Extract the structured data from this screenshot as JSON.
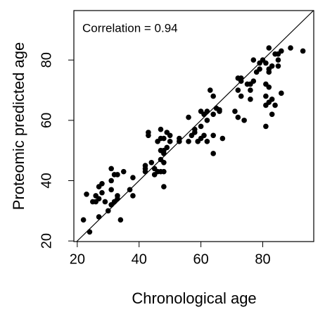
{
  "chart_data": {
    "type": "scatter",
    "x_label": "Chronological age",
    "y_label": "Proteomic predicted age",
    "annotation": "Correlation = 0.94",
    "color": "#000000",
    "xlim": [
      18.9,
      96.5
    ],
    "ylim": [
      19.8,
      96.4
    ],
    "xticks": [
      20,
      40,
      60,
      80
    ],
    "yticks": [
      20,
      40,
      60,
      80
    ],
    "x": [
      22,
      23,
      24,
      25,
      26,
      26,
      27,
      27,
      27,
      28,
      28,
      29,
      30,
      31,
      31,
      31,
      31,
      32,
      32,
      33,
      33,
      33,
      34,
      35,
      37,
      38,
      38,
      42,
      42,
      42,
      43,
      43,
      44,
      45,
      45,
      46,
      46,
      47,
      47,
      47,
      47,
      47,
      48,
      48,
      48,
      48,
      48,
      48,
      49,
      49,
      50,
      50,
      53,
      53,
      56,
      56,
      57,
      58,
      58,
      59,
      60,
      60,
      60,
      61,
      61,
      62,
      62,
      62,
      63,
      64,
      64,
      64,
      64,
      65,
      66,
      66,
      67,
      71,
      72,
      72,
      72,
      73,
      73,
      73,
      74,
      75,
      76,
      76,
      76,
      77,
      77,
      78,
      79,
      79,
      80,
      81,
      81,
      81,
      81,
      81,
      82,
      82,
      82,
      82,
      82,
      83,
      83,
      83,
      84,
      84,
      85,
      85,
      85,
      86,
      86,
      89,
      93
    ],
    "values": [
      27,
      35.5,
      23,
      33,
      33,
      35,
      34,
      38,
      28,
      36,
      39,
      33,
      30,
      44,
      40,
      37,
      32,
      33,
      42,
      35,
      34,
      42,
      27,
      43,
      37,
      35,
      41,
      43,
      44,
      45,
      56,
      55,
      46,
      42,
      44,
      43,
      53,
      57,
      54,
      50,
      43,
      47,
      49,
      54,
      50,
      43,
      38,
      46,
      56,
      51,
      55,
      53,
      54,
      53,
      61,
      53,
      55,
      57,
      56,
      53,
      54,
      58,
      63,
      62,
      55,
      53,
      60,
      63,
      70,
      62,
      68,
      49,
      55,
      64,
      63,
      63.5,
      54,
      63,
      70,
      74,
      61,
      73,
      68,
      74,
      60,
      72,
      70,
      72,
      67,
      80,
      73,
      76,
      77,
      79,
      80,
      58,
      65,
      68,
      72,
      79,
      77,
      84,
      71,
      76,
      66,
      78,
      62,
      67,
      65,
      82,
      80,
      78,
      82,
      83,
      69,
      84,
      83
    ]
  }
}
